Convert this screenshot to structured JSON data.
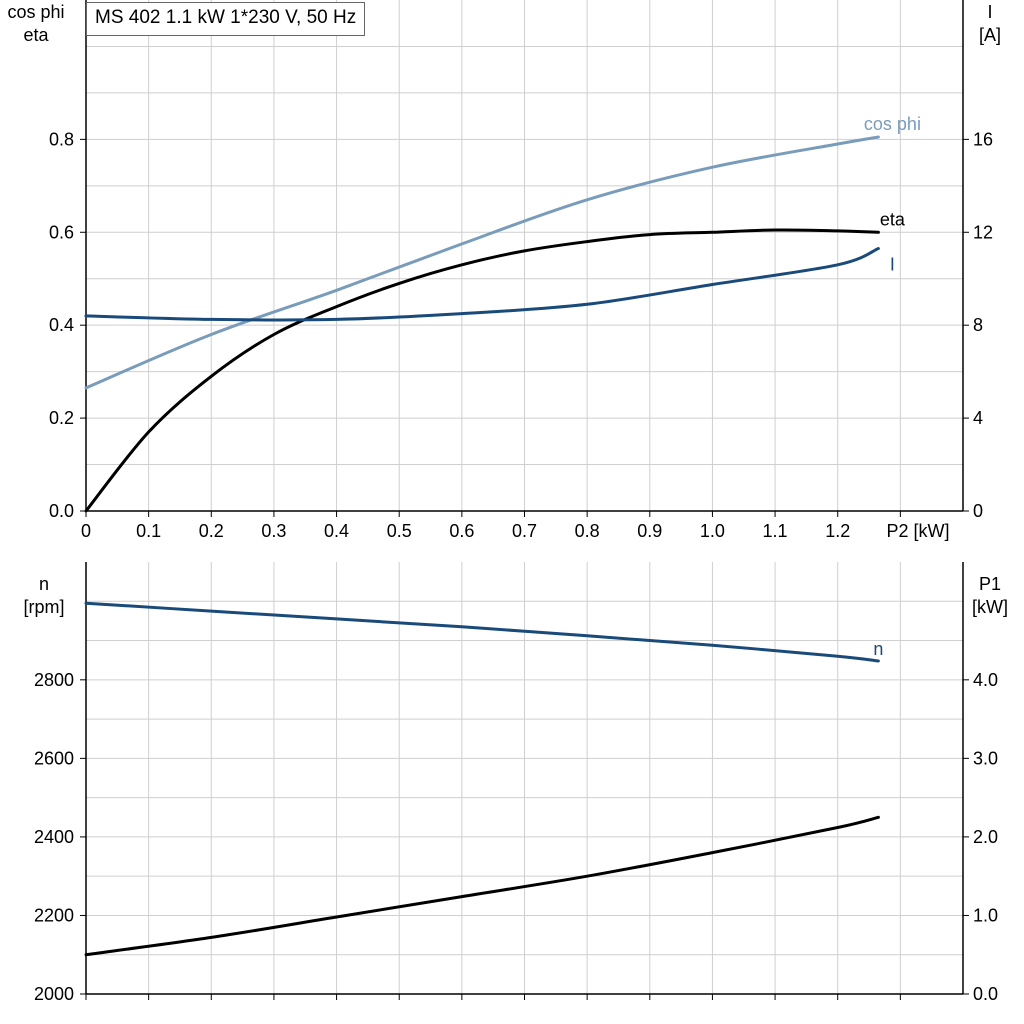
{
  "chart_data": [
    {
      "type": "line",
      "title": "MS 402   1.1 kW   1*230 V, 50 Hz",
      "xlabel": "P2 [kW]",
      "ylabel_left": [
        "cos phi",
        "eta"
      ],
      "ylabel_right": [
        "I",
        "[A]"
      ],
      "xlim": [
        0,
        1.4
      ],
      "xticks": [
        "0",
        "0.1",
        "0.2",
        "0.3",
        "0.4",
        "0.5",
        "0.6",
        "0.7",
        "0.8",
        "0.9",
        "1.0",
        "1.1",
        "1.2"
      ],
      "ylim_left": [
        0,
        1.1
      ],
      "yticks_left": [
        "0.0",
        "0.2",
        "0.4",
        "0.6",
        "0.8"
      ],
      "ylim_right": [
        0,
        22
      ],
      "yticks_right": [
        "0",
        "4",
        "8",
        "12",
        "16"
      ],
      "grid": true,
      "series": [
        {
          "name": "cos phi",
          "axis": "left",
          "color": "#7a9cbb",
          "x": [
            0,
            0.2,
            0.4,
            0.6,
            0.8,
            1.0,
            1.2,
            1.265
          ],
          "y": [
            0.265,
            0.38,
            0.475,
            0.575,
            0.67,
            0.74,
            0.79,
            0.805
          ]
        },
        {
          "name": "eta",
          "axis": "left",
          "color": "#000000",
          "x": [
            0,
            0.1,
            0.2,
            0.3,
            0.4,
            0.5,
            0.6,
            0.7,
            0.8,
            0.9,
            1.0,
            1.1,
            1.2,
            1.265
          ],
          "y": [
            0,
            0.17,
            0.29,
            0.38,
            0.44,
            0.49,
            0.53,
            0.56,
            0.58,
            0.595,
            0.6,
            0.605,
            0.603,
            0.6
          ]
        },
        {
          "name": "I",
          "axis": "right",
          "color": "#1a4a7a",
          "x": [
            0,
            0.2,
            0.4,
            0.6,
            0.8,
            1.0,
            1.2,
            1.265
          ],
          "y": [
            8.4,
            8.25,
            8.25,
            8.5,
            8.9,
            9.75,
            10.6,
            11.3
          ]
        }
      ]
    },
    {
      "type": "line",
      "title": "",
      "xlabel": "",
      "ylabel_left": [
        "n",
        "[rpm]"
      ],
      "ylabel_right": [
        "P1",
        "[kW]"
      ],
      "xlim": [
        0,
        1.4
      ],
      "ylim_left": [
        2000,
        3100
      ],
      "yticks_left": [
        "2000",
        "2200",
        "2400",
        "2600",
        "2800"
      ],
      "ylim_right": [
        0,
        5.5
      ],
      "yticks_right": [
        "0.0",
        "1.0",
        "2.0",
        "3.0",
        "4.0"
      ],
      "grid": true,
      "series": [
        {
          "name": "n",
          "axis": "left",
          "color": "#1a4a7a",
          "x": [
            0,
            0.2,
            0.4,
            0.6,
            0.8,
            1.0,
            1.2,
            1.265
          ],
          "y": [
            2995,
            2975,
            2955,
            2935,
            2912,
            2888,
            2860,
            2848
          ]
        },
        {
          "name": "",
          "axis": "right",
          "color": "#000000",
          "x": [
            0,
            0.2,
            0.4,
            0.6,
            0.8,
            1.0,
            1.2,
            1.265
          ],
          "y": [
            0.5,
            0.72,
            0.98,
            1.24,
            1.5,
            1.8,
            2.12,
            2.25
          ]
        }
      ]
    }
  ]
}
